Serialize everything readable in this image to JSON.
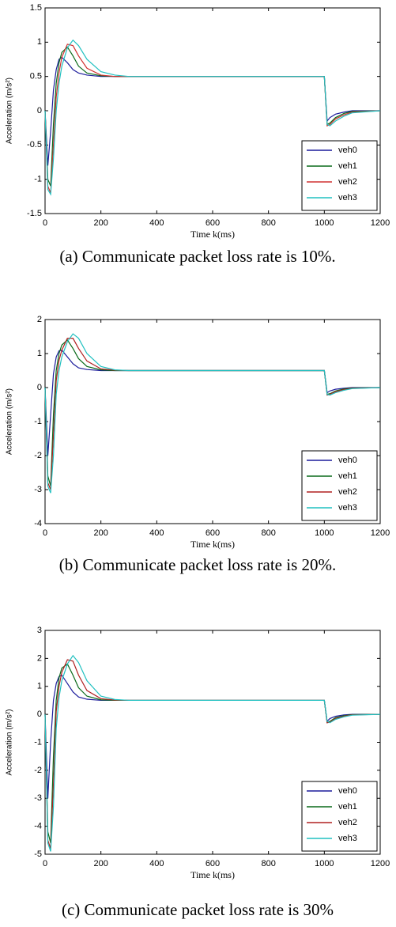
{
  "chart_data": [
    {
      "type": "line",
      "caption": "(a) Communicate packet loss rate is 10%.",
      "xlabel": "Time k(ms)",
      "ylabel": "Acceleration (m/s²)",
      "xlim": [
        0,
        1200
      ],
      "xticks": [
        0,
        200,
        400,
        600,
        800,
        1000,
        1200
      ],
      "ylim": [
        -1.5,
        1.5
      ],
      "yticks": [
        -1.5,
        -1,
        -0.5,
        0,
        0.5,
        1,
        1.5
      ],
      "legend": "lower right",
      "x": [
        0,
        10,
        20,
        30,
        40,
        50,
        60,
        80,
        100,
        120,
        150,
        200,
        250,
        300,
        1000,
        1010,
        1020,
        1040,
        1070,
        1100,
        1200
      ],
      "series": [
        {
          "name": "veh0",
          "color": "#1c1c9c",
          "values": [
            0,
            -0.8,
            -0.3,
            0.3,
            0.6,
            0.75,
            0.78,
            0.7,
            0.6,
            0.55,
            0.52,
            0.5,
            0.5,
            0.5,
            0.5,
            -0.15,
            -0.1,
            -0.05,
            -0.02,
            0,
            0
          ]
        },
        {
          "name": "veh1",
          "color": "#0a6a1a",
          "values": [
            0,
            -1.0,
            -1.1,
            -0.2,
            0.4,
            0.7,
            0.85,
            0.93,
            0.8,
            0.65,
            0.55,
            0.51,
            0.5,
            0.5,
            0.5,
            -0.2,
            -0.18,
            -0.1,
            -0.04,
            -0.01,
            0
          ]
        },
        {
          "name": "veh2",
          "color": "#d03030",
          "values": [
            0,
            -1.1,
            -1.2,
            -0.5,
            0.2,
            0.55,
            0.78,
            0.97,
            0.95,
            0.8,
            0.62,
            0.52,
            0.5,
            0.5,
            0.5,
            -0.22,
            -0.2,
            -0.12,
            -0.06,
            -0.02,
            0
          ]
        },
        {
          "name": "veh3",
          "color": "#20c0c0",
          "values": [
            0,
            -1.15,
            -1.22,
            -0.7,
            0.0,
            0.4,
            0.65,
            0.92,
            1.03,
            0.95,
            0.75,
            0.57,
            0.52,
            0.5,
            0.5,
            -0.2,
            -0.22,
            -0.15,
            -0.08,
            -0.03,
            0
          ]
        }
      ]
    },
    {
      "type": "line",
      "caption": "(b) Communicate packet loss rate is 20%.",
      "xlabel": "Time k(ms)",
      "ylabel": "Acceleration (m/s²)",
      "xlim": [
        0,
        1200
      ],
      "xticks": [
        0,
        200,
        400,
        600,
        800,
        1000,
        1200
      ],
      "ylim": [
        -4,
        2
      ],
      "yticks": [
        -4,
        -3,
        -2,
        -1,
        0,
        1,
        2
      ],
      "legend": "lower right",
      "x": [
        0,
        10,
        20,
        30,
        40,
        50,
        60,
        80,
        100,
        120,
        150,
        200,
        250,
        300,
        1000,
        1010,
        1020,
        1040,
        1070,
        1100,
        1200
      ],
      "series": [
        {
          "name": "veh0",
          "color": "#1c1c9c",
          "values": [
            0,
            -2.0,
            -0.8,
            0.4,
            0.9,
            1.08,
            1.1,
            0.9,
            0.7,
            0.58,
            0.53,
            0.5,
            0.5,
            0.5,
            0.5,
            -0.15,
            -0.1,
            -0.05,
            -0.02,
            0,
            0
          ]
        },
        {
          "name": "veh1",
          "color": "#0a6a1a",
          "values": [
            0,
            -2.6,
            -2.9,
            -0.8,
            0.5,
            1.0,
            1.25,
            1.4,
            1.15,
            0.85,
            0.62,
            0.52,
            0.5,
            0.5,
            0.5,
            -0.2,
            -0.18,
            -0.1,
            -0.04,
            -0.01,
            0
          ]
        },
        {
          "name": "veh2",
          "color": "#b02020",
          "values": [
            0,
            -2.8,
            -3.0,
            -1.4,
            0.2,
            0.8,
            1.1,
            1.45,
            1.45,
            1.15,
            0.78,
            0.55,
            0.51,
            0.5,
            0.5,
            -0.22,
            -0.2,
            -0.12,
            -0.06,
            -0.02,
            0
          ]
        },
        {
          "name": "veh3",
          "color": "#20c0c0",
          "values": [
            0,
            -2.9,
            -3.1,
            -2.0,
            -0.2,
            0.5,
            0.9,
            1.35,
            1.58,
            1.45,
            1.0,
            0.62,
            0.52,
            0.5,
            0.5,
            -0.2,
            -0.22,
            -0.15,
            -0.08,
            -0.03,
            0
          ]
        }
      ]
    },
    {
      "type": "line",
      "caption": "(c) Communicate packet loss rate is 30%",
      "xlabel": "Time k(ms)",
      "ylabel": "Acceleration (m/s²)",
      "xlim": [
        0,
        1200
      ],
      "xticks": [
        0,
        200,
        400,
        600,
        800,
        1000,
        1200
      ],
      "ylim": [
        -5,
        3
      ],
      "yticks": [
        -5,
        -4,
        -3,
        -2,
        -1,
        0,
        1,
        2,
        3
      ],
      "legend": "lower right",
      "x": [
        0,
        10,
        20,
        30,
        40,
        50,
        60,
        80,
        100,
        120,
        150,
        200,
        250,
        300,
        1000,
        1010,
        1020,
        1040,
        1070,
        1100,
        1200
      ],
      "series": [
        {
          "name": "veh0",
          "color": "#1c1c9c",
          "values": [
            0,
            -3.0,
            -1.0,
            0.5,
            1.1,
            1.35,
            1.4,
            1.1,
            0.8,
            0.62,
            0.54,
            0.5,
            0.5,
            0.5,
            0.5,
            -0.25,
            -0.15,
            -0.07,
            -0.02,
            0,
            0
          ]
        },
        {
          "name": "veh1",
          "color": "#0a6a1a",
          "values": [
            0,
            -4.2,
            -4.6,
            -1.5,
            0.5,
            1.3,
            1.65,
            1.8,
            1.4,
            0.95,
            0.65,
            0.52,
            0.5,
            0.5,
            0.5,
            -0.3,
            -0.25,
            -0.12,
            -0.05,
            -0.01,
            0
          ]
        },
        {
          "name": "veh2",
          "color": "#b02020",
          "values": [
            0,
            -4.5,
            -4.8,
            -2.5,
            0.1,
            1.0,
            1.5,
            1.95,
            1.9,
            1.4,
            0.85,
            0.56,
            0.51,
            0.5,
            0.5,
            -0.3,
            -0.28,
            -0.15,
            -0.07,
            -0.02,
            0
          ]
        },
        {
          "name": "veh3",
          "color": "#20c0c0",
          "values": [
            0,
            -4.6,
            -4.9,
            -3.3,
            -0.5,
            0.6,
            1.2,
            1.8,
            2.1,
            1.85,
            1.2,
            0.65,
            0.53,
            0.5,
            0.5,
            -0.25,
            -0.3,
            -0.18,
            -0.09,
            -0.03,
            0
          ]
        }
      ]
    }
  ]
}
